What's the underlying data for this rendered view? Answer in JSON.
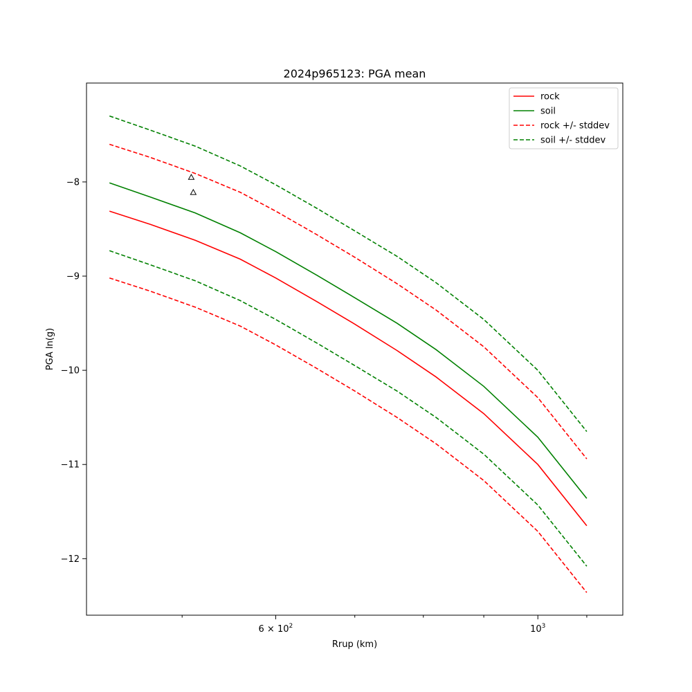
{
  "chart_data": {
    "type": "line",
    "title": "2024p965123: PGA mean",
    "xlabel": "Rrup (km)",
    "ylabel": "PGA ln(g)",
    "xscale": "log",
    "xlim": [
      415,
      1180
    ],
    "ylim": [
      -12.6,
      -6.95
    ],
    "x_tick_labels": [
      {
        "value": 600,
        "label": "6 × 10",
        "exponent": "2"
      },
      {
        "value": 1000,
        "label": "10",
        "exponent": "3"
      }
    ],
    "y_tick_values": [
      -8,
      -9,
      -10,
      -11,
      -12
    ],
    "y_tick_labels": [
      "−8",
      "−9",
      "−10",
      "−11",
      "−12"
    ],
    "legend_position": "upper-right",
    "grid": false,
    "series": [
      {
        "name": "rock",
        "color": "#ff0000",
        "style": "solid",
        "x": [
          434,
          470,
          513,
          560,
          600,
          650,
          700,
          760,
          820,
          900,
          1000,
          1100
        ],
        "y": [
          -8.31,
          -8.45,
          -8.62,
          -8.82,
          -9.02,
          -9.27,
          -9.51,
          -9.79,
          -10.07,
          -10.46,
          -11.0,
          -11.65
        ]
      },
      {
        "name": "soil",
        "color": "#008000",
        "style": "solid",
        "x": [
          434,
          470,
          513,
          560,
          600,
          650,
          700,
          760,
          820,
          900,
          1000,
          1100
        ],
        "y": [
          -8.01,
          -8.16,
          -8.33,
          -8.54,
          -8.74,
          -8.99,
          -9.23,
          -9.5,
          -9.78,
          -10.17,
          -10.71,
          -11.36
        ]
      },
      {
        "name": "rock +/- stddev",
        "color": "#ff0000",
        "style": "dashed",
        "x": [
          434,
          470,
          513,
          560,
          600,
          650,
          700,
          760,
          820,
          900,
          1000,
          1100
        ],
        "y": [
          -7.6,
          -7.74,
          -7.91,
          -8.11,
          -8.31,
          -8.56,
          -8.8,
          -9.08,
          -9.36,
          -9.75,
          -10.29,
          -10.94
        ]
      },
      {
        "name": "",
        "color": "#ff0000",
        "style": "dashed",
        "x": [
          434,
          470,
          513,
          560,
          600,
          650,
          700,
          760,
          820,
          900,
          1000,
          1100
        ],
        "y": [
          -9.02,
          -9.16,
          -9.33,
          -9.53,
          -9.73,
          -9.98,
          -10.22,
          -10.5,
          -10.78,
          -11.17,
          -11.71,
          -12.36
        ]
      },
      {
        "name": "soil +/- stddev",
        "color": "#008000",
        "style": "dashed",
        "x": [
          434,
          470,
          513,
          560,
          600,
          650,
          700,
          760,
          820,
          900,
          1000,
          1100
        ],
        "y": [
          -7.3,
          -7.45,
          -7.62,
          -7.83,
          -8.03,
          -8.28,
          -8.52,
          -8.79,
          -9.07,
          -9.46,
          -10.0,
          -10.65
        ]
      },
      {
        "name": "",
        "color": "#008000",
        "style": "dashed",
        "x": [
          434,
          470,
          513,
          560,
          600,
          650,
          700,
          760,
          820,
          900,
          1000,
          1100
        ],
        "y": [
          -8.73,
          -8.88,
          -9.05,
          -9.26,
          -9.46,
          -9.71,
          -9.95,
          -10.22,
          -10.5,
          -10.89,
          -11.43,
          -12.08
        ]
      }
    ],
    "points": [
      {
        "x": 509,
        "y": -7.95,
        "marker": "triangle-open"
      },
      {
        "x": 511,
        "y": -8.11,
        "marker": "triangle-open"
      }
    ],
    "legend": [
      {
        "label": "rock",
        "color": "#ff0000",
        "style": "solid"
      },
      {
        "label": "soil",
        "color": "#008000",
        "style": "solid"
      },
      {
        "label": "rock +/- stddev",
        "color": "#ff0000",
        "style": "dashed"
      },
      {
        "label": "soil +/- stddev",
        "color": "#008000",
        "style": "dashed"
      }
    ]
  }
}
